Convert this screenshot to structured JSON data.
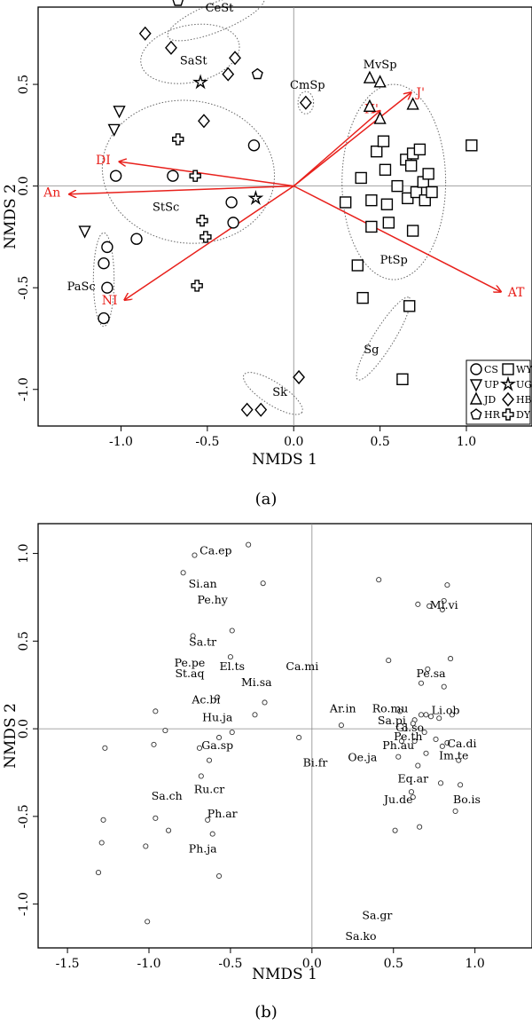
{
  "chart_data": [
    {
      "panel_label": "(a)",
      "type": "scatter",
      "xlabel": "NMDS 1",
      "ylabel": "NMDS 2",
      "xlim": [
        -1.48,
        1.38
      ],
      "ylim": [
        -1.18,
        0.88
      ],
      "xticks": [
        "-1.0",
        "-0.5",
        "0.0",
        "0.5",
        "1.0"
      ],
      "yticks": [
        "-1.0",
        "-0.5",
        "0.0",
        "0.5"
      ],
      "legend": {
        "position": "bottom-right",
        "entries": [
          {
            "label": "CS",
            "shape": "circle"
          },
          {
            "label": "WY",
            "shape": "square"
          },
          {
            "label": "UP",
            "shape": "triangle-down"
          },
          {
            "label": "UG",
            "shape": "star"
          },
          {
            "label": "JD",
            "shape": "triangle-up"
          },
          {
            "label": "HB",
            "shape": "diamond"
          },
          {
            "label": "HR",
            "shape": "pentagon"
          },
          {
            "label": "DY",
            "shape": "cross"
          }
        ]
      },
      "series": [
        {
          "name": "CS",
          "shape": "circle",
          "points": [
            [
              -1.03,
              0.05
            ],
            [
              -0.7,
              0.05
            ],
            [
              -0.23,
              0.2
            ],
            [
              -0.36,
              -0.08
            ],
            [
              -0.35,
              -0.18
            ],
            [
              -0.91,
              -0.26
            ],
            [
              -1.08,
              -0.3
            ],
            [
              -1.1,
              -0.38
            ],
            [
              -1.08,
              -0.5
            ],
            [
              -1.1,
              -0.65
            ]
          ]
        },
        {
          "name": "WY",
          "shape": "square",
          "points": [
            [
              0.3,
              -0.08
            ],
            [
              0.39,
              0.04
            ],
            [
              0.45,
              -0.07
            ],
            [
              0.45,
              -0.2
            ],
            [
              0.48,
              0.17
            ],
            [
              0.52,
              0.22
            ],
            [
              0.53,
              0.08
            ],
            [
              0.54,
              -0.09
            ],
            [
              0.55,
              -0.18
            ],
            [
              0.6,
              0.0
            ],
            [
              0.65,
              0.13
            ],
            [
              0.66,
              -0.06
            ],
            [
              0.68,
              0.1
            ],
            [
              0.69,
              -0.22
            ],
            [
              0.69,
              0.16
            ],
            [
              0.71,
              -0.03
            ],
            [
              0.73,
              0.18
            ],
            [
              0.75,
              0.02
            ],
            [
              0.76,
              -0.07
            ],
            [
              0.78,
              0.06
            ],
            [
              0.8,
              -0.03
            ],
            [
              1.03,
              0.2
            ],
            [
              0.37,
              -0.39
            ],
            [
              0.4,
              -0.55
            ],
            [
              0.67,
              -0.59
            ],
            [
              0.63,
              -0.95
            ]
          ]
        },
        {
          "name": "UP",
          "shape": "triangle-down",
          "points": [
            [
              -1.01,
              0.37
            ],
            [
              -1.04,
              0.28
            ],
            [
              -1.21,
              -0.22
            ]
          ]
        },
        {
          "name": "UG",
          "shape": "star",
          "points": [
            [
              -0.54,
              0.51
            ],
            [
              -0.22,
              -0.06
            ]
          ]
        },
        {
          "name": "JD",
          "shape": "triangle-up",
          "points": [
            [
              0.44,
              0.53
            ],
            [
              0.5,
              0.51
            ],
            [
              0.44,
              0.39
            ],
            [
              0.5,
              0.33
            ],
            [
              0.69,
              0.4
            ]
          ]
        },
        {
          "name": "HB",
          "shape": "diamond",
          "points": [
            [
              -0.86,
              0.75
            ],
            [
              -0.71,
              0.68
            ],
            [
              -0.34,
              0.63
            ],
            [
              -0.52,
              0.32
            ],
            [
              -0.38,
              0.55
            ],
            [
              0.07,
              0.41
            ],
            [
              -0.27,
              -1.1
            ],
            [
              -0.19,
              -1.1
            ],
            [
              0.03,
              -0.94
            ]
          ]
        },
        {
          "name": "HR",
          "shape": "pentagon",
          "points": [
            [
              -0.67,
              0.91
            ],
            [
              -0.21,
              0.55
            ]
          ]
        },
        {
          "name": "DY",
          "shape": "cross",
          "points": [
            [
              -0.67,
              0.23
            ],
            [
              -0.57,
              0.05
            ],
            [
              -0.53,
              -0.17
            ],
            [
              -0.51,
              -0.25
            ],
            [
              -0.56,
              -0.49
            ]
          ]
        }
      ],
      "vectors": [
        {
          "label": "DI",
          "x": -1.01,
          "y": 0.12,
          "label_x": -1.06,
          "label_y": 0.13,
          "anchor": "end"
        },
        {
          "label": "An",
          "x": -1.3,
          "y": -0.04,
          "label_x": -1.35,
          "label_y": -0.03,
          "anchor": "end"
        },
        {
          "label": "NI",
          "x": -0.98,
          "y": -0.56,
          "label_x": -1.02,
          "label_y": -0.56,
          "anchor": "end"
        },
        {
          "label": "AT",
          "x": 1.2,
          "y": -0.52,
          "label_x": 1.24,
          "label_y": -0.52,
          "anchor": "start"
        },
        {
          "label": "H'",
          "x": 0.5,
          "y": 0.37,
          "label_x": 0.45,
          "label_y": 0.38,
          "anchor": "middle"
        },
        {
          "label": "J'",
          "x": 0.68,
          "y": 0.46,
          "label_x": 0.71,
          "label_y": 0.46,
          "anchor": "start"
        }
      ],
      "groups": [
        {
          "label": "CeSt",
          "label_x": -0.43,
          "label_y": 0.88,
          "ellipse": {
            "cx": -0.45,
            "cy": 0.83,
            "rx": 0.3,
            "ry": 0.07,
            "rot": -22
          }
        },
        {
          "label": "SaSt",
          "label_x": -0.58,
          "label_y": 0.62,
          "ellipse": {
            "cx": -0.6,
            "cy": 0.65,
            "rx": 0.29,
            "ry": 0.14,
            "rot": -12
          }
        },
        {
          "label": "CmSp",
          "label_x": 0.08,
          "label_y": 0.5,
          "ellipse": {
            "cx": 0.07,
            "cy": 0.41,
            "rx": 0.045,
            "ry": 0.055,
            "rot": 0
          }
        },
        {
          "label": "MvSp",
          "label_x": 0.5,
          "label_y": 0.6,
          "ellipse": null
        },
        {
          "label": "StSc",
          "label_x": -0.74,
          "label_y": -0.1,
          "ellipse": {
            "cx": -0.61,
            "cy": 0.07,
            "rx": 0.5,
            "ry": 0.35,
            "rot": 8
          }
        },
        {
          "label": "PtSp",
          "label_x": 0.58,
          "label_y": -0.36,
          "ellipse": {
            "cx": 0.58,
            "cy": 0.02,
            "rx": 0.3,
            "ry": 0.48,
            "rot": 0
          }
        },
        {
          "label": "PaSc",
          "label_x": -1.23,
          "label_y": -0.49,
          "ellipse": {
            "cx": -1.1,
            "cy": -0.46,
            "rx": 0.06,
            "ry": 0.23,
            "rot": 0
          }
        },
        {
          "label": "Sg",
          "label_x": 0.45,
          "label_y": -0.8,
          "ellipse": {
            "cx": 0.52,
            "cy": -0.75,
            "rx": 0.28,
            "ry": 0.05,
            "rot": -58
          }
        },
        {
          "label": "Sk",
          "label_x": -0.08,
          "label_y": -1.01,
          "ellipse": {
            "cx": -0.12,
            "cy": -1.02,
            "rx": 0.2,
            "ry": 0.055,
            "rot": 33
          }
        }
      ]
    },
    {
      "panel_label": "(b)",
      "type": "scatter",
      "xlabel": "NMDS 1",
      "ylabel": "NMDS 2",
      "xlim": [
        -1.68,
        1.35
      ],
      "ylim": [
        -1.25,
        1.17
      ],
      "xticks": [
        "-1.5",
        "-1.0",
        "-0.5",
        "0.0",
        "0.5",
        "1.0"
      ],
      "yticks": [
        "-1.0",
        "-0.5",
        "0.0",
        "0.5",
        "1.0"
      ],
      "labels": [
        {
          "text": "Ca.ep",
          "x": -0.59,
          "y": 1.02
        },
        {
          "text": "Si.an",
          "x": -0.67,
          "y": 0.83
        },
        {
          "text": "Pe.hy",
          "x": -0.61,
          "y": 0.74
        },
        {
          "text": "Sa.tr",
          "x": -0.67,
          "y": 0.5
        },
        {
          "text": "Pe.pe",
          "x": -0.75,
          "y": 0.38
        },
        {
          "text": "St.aq",
          "x": -0.75,
          "y": 0.32
        },
        {
          "text": "El.ts",
          "x": -0.49,
          "y": 0.36
        },
        {
          "text": "Mi.sa",
          "x": -0.34,
          "y": 0.27
        },
        {
          "text": "Ca.mi",
          "x": -0.06,
          "y": 0.36
        },
        {
          "text": "Ac.bi",
          "x": -0.65,
          "y": 0.17
        },
        {
          "text": "Hu.ja",
          "x": -0.58,
          "y": 0.07
        },
        {
          "text": "Ar.in",
          "x": 0.19,
          "y": 0.12
        },
        {
          "text": "Ro.mu",
          "x": 0.48,
          "y": 0.12
        },
        {
          "text": "Sa.pi",
          "x": 0.49,
          "y": 0.05
        },
        {
          "text": "Pe.sa",
          "x": 0.73,
          "y": 0.32
        },
        {
          "text": "Mi.vi",
          "x": 0.81,
          "y": 0.71
        },
        {
          "text": "Li.ob",
          "x": 0.82,
          "y": 0.11
        },
        {
          "text": "Gl.so",
          "x": 0.6,
          "y": 0.01
        },
        {
          "text": "Pe.th",
          "x": 0.59,
          "y": -0.04
        },
        {
          "text": "Ph.au",
          "x": 0.53,
          "y": -0.09
        },
        {
          "text": "Ca.di",
          "x": 0.92,
          "y": -0.08
        },
        {
          "text": "Im.te",
          "x": 0.87,
          "y": -0.15
        },
        {
          "text": "Ga.sp",
          "x": -0.58,
          "y": -0.09
        },
        {
          "text": "Bi.fr",
          "x": 0.02,
          "y": -0.19
        },
        {
          "text": "Oe.ja",
          "x": 0.31,
          "y": -0.16
        },
        {
          "text": "Eq.ar",
          "x": 0.62,
          "y": -0.28
        },
        {
          "text": "Ju.de",
          "x": 0.53,
          "y": -0.4
        },
        {
          "text": "Bo.is",
          "x": 0.95,
          "y": -0.4
        },
        {
          "text": "Sa.ch",
          "x": -0.89,
          "y": -0.38
        },
        {
          "text": "Ru.cr",
          "x": -0.63,
          "y": -0.34
        },
        {
          "text": "Ph.ar",
          "x": -0.55,
          "y": -0.48
        },
        {
          "text": "Ph.ja",
          "x": -0.67,
          "y": -0.68
        },
        {
          "text": "Sa.gr",
          "x": 0.4,
          "y": -1.06
        },
        {
          "text": "Sa.ko",
          "x": 0.3,
          "y": -1.18
        }
      ],
      "points": [
        [
          -0.72,
          0.99
        ],
        [
          -0.39,
          1.05
        ],
        [
          -0.79,
          0.89
        ],
        [
          -0.3,
          0.83
        ],
        [
          -0.49,
          0.56
        ],
        [
          -0.73,
          0.53
        ],
        [
          -0.5,
          0.41
        ],
        [
          -0.29,
          0.15
        ],
        [
          -0.35,
          0.08
        ],
        [
          -0.58,
          0.18
        ],
        [
          -0.96,
          0.1
        ],
        [
          -0.9,
          -0.01
        ],
        [
          -0.97,
          -0.09
        ],
        [
          -1.27,
          -0.11
        ],
        [
          -0.49,
          -0.02
        ],
        [
          -0.57,
          -0.05
        ],
        [
          -0.69,
          -0.11
        ],
        [
          -0.63,
          -0.18
        ],
        [
          -0.68,
          -0.27
        ],
        [
          -0.08,
          -0.05
        ],
        [
          0.18,
          0.02
        ],
        [
          -1.28,
          -0.52
        ],
        [
          -0.96,
          -0.51
        ],
        [
          -1.02,
          -0.67
        ],
        [
          -0.88,
          -0.58
        ],
        [
          -1.29,
          -0.65
        ],
        [
          -0.64,
          -0.52
        ],
        [
          -0.61,
          -0.6
        ],
        [
          -0.57,
          -0.84
        ],
        [
          -1.31,
          -0.82
        ],
        [
          -1.01,
          -1.1
        ],
        [
          0.41,
          0.85
        ],
        [
          0.65,
          0.71
        ],
        [
          0.72,
          0.7
        ],
        [
          0.81,
          0.73
        ],
        [
          0.83,
          0.82
        ],
        [
          0.8,
          0.68
        ],
        [
          0.85,
          0.4
        ],
        [
          0.47,
          0.39
        ],
        [
          0.71,
          0.34
        ],
        [
          0.67,
          0.26
        ],
        [
          0.81,
          0.24
        ],
        [
          0.54,
          0.1
        ],
        [
          0.63,
          0.05
        ],
        [
          0.67,
          0.08
        ],
        [
          0.7,
          0.08
        ],
        [
          0.73,
          0.07
        ],
        [
          0.78,
          0.06
        ],
        [
          0.86,
          0.08
        ],
        [
          0.62,
          0.03
        ],
        [
          0.57,
          0.0
        ],
        [
          0.69,
          -0.02
        ],
        [
          0.63,
          -0.07
        ],
        [
          0.55,
          -0.07
        ],
        [
          0.53,
          -0.16
        ],
        [
          0.76,
          -0.06
        ],
        [
          0.7,
          -0.14
        ],
        [
          0.8,
          -0.1
        ],
        [
          0.83,
          -0.08
        ],
        [
          0.65,
          -0.21
        ],
        [
          0.61,
          -0.36
        ],
        [
          0.62,
          -0.39
        ],
        [
          0.79,
          -0.31
        ],
        [
          0.88,
          -0.47
        ],
        [
          0.91,
          -0.32
        ],
        [
          0.9,
          -0.18
        ],
        [
          0.51,
          -0.58
        ],
        [
          0.66,
          -0.56
        ]
      ]
    }
  ]
}
